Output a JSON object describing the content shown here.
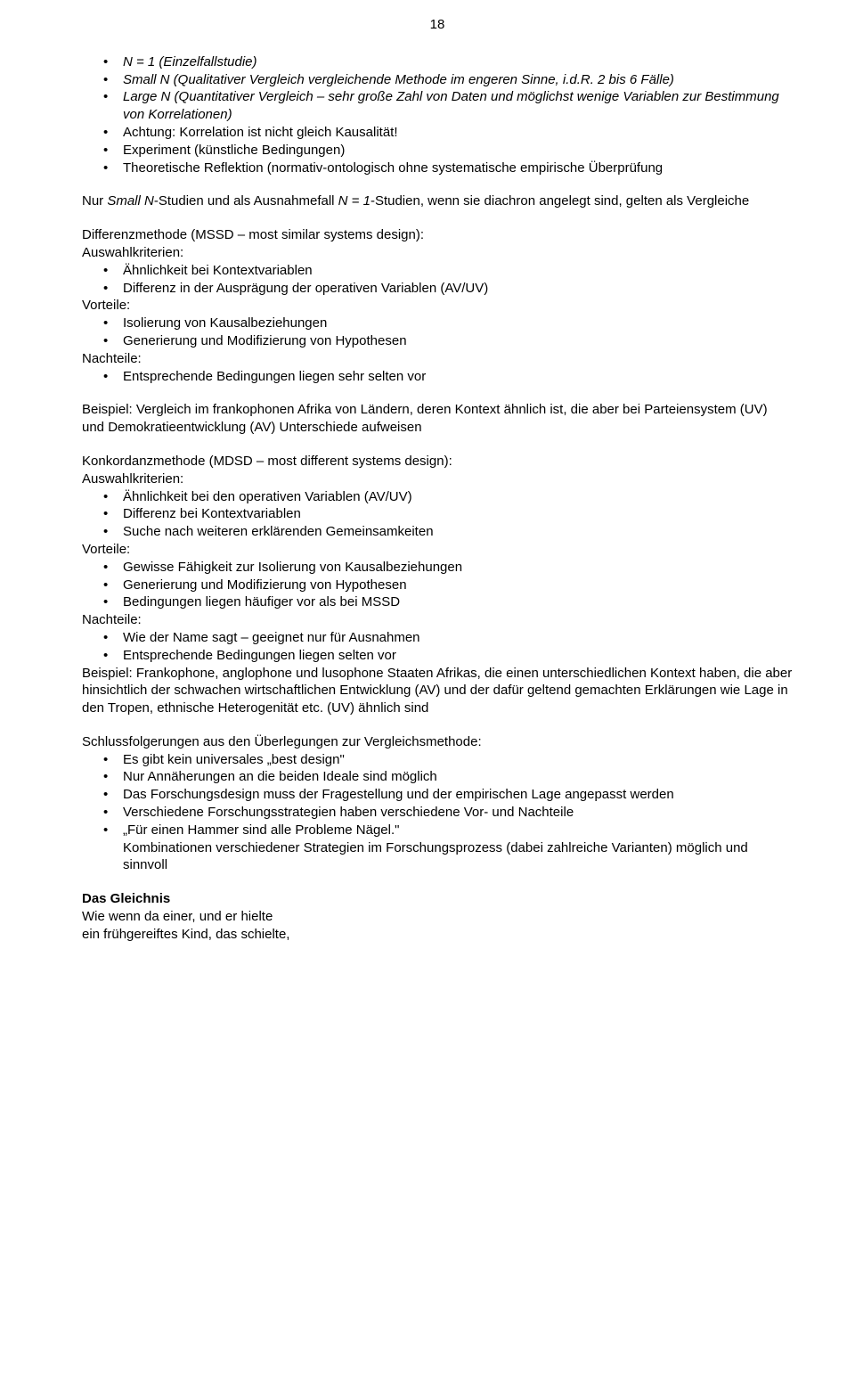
{
  "page_number": "18",
  "top_list": [
    "N = 1 (Einzelfallstudie)",
    "Small N (Qualitativer Vergleich  vergleichende Methode im engeren Sinne, i.d.R. 2 bis 6 Fälle)",
    "Large N (Quantitativer Vergleich – sehr große Zahl von Daten und möglichst wenige Variablen zur Bestimmung von Korrelationen)",
    "Achtung: Korrelation ist nicht gleich Kausalität!",
    "Experiment (künstliche Bedingungen)",
    "Theoretische Reflektion (normativ-ontologisch ohne systematische empirische Überprüfung"
  ],
  "para1_a": "Nur ",
  "para1_b": "Small N",
  "para1_c": "-Studien und als Ausnahmefall ",
  "para1_d": "N = 1",
  "para1_e": "-Studien, wenn sie diachron angelegt sind, gelten als Vergleiche",
  "diff_head": "Differenzmethode (MSSD – most similar systems design):",
  "ausw_label": "Auswahlkriterien:",
  "diff_ausw": [
    "Ähnlichkeit bei Kontextvariablen",
    "Differenz in der Ausprägung der operativen Variablen (AV/UV)"
  ],
  "vort_label": "Vorteile:",
  "diff_vort": [
    "Isolierung von Kausalbeziehungen",
    "Generierung und Modifizierung von Hypothesen"
  ],
  "nacht_label": "Nachteile:",
  "diff_nacht": [
    "Entsprechende Bedingungen liegen sehr selten vor"
  ],
  "diff_beispiel": "Beispiel: Vergleich im frankophonen Afrika von Ländern, deren Kontext ähnlich ist, die aber bei Parteiensystem (UV) und Demokratieentwicklung (AV) Unterschiede aufweisen",
  "konk_head": "Konkordanzmethode (MDSD – most different systems design):",
  "konk_ausw": [
    "Ähnlichkeit bei den operativen Variablen (AV/UV)",
    "Differenz bei Kontextvariablen",
    "Suche nach weiteren erklärenden Gemeinsamkeiten"
  ],
  "konk_vort": [
    "Gewisse Fähigkeit zur Isolierung von Kausalbeziehungen",
    "Generierung und Modifizierung von Hypothesen",
    "Bedingungen liegen häufiger vor als bei MSSD"
  ],
  "konk_nacht": [
    "Wie der Name sagt – geeignet nur für Ausnahmen",
    "Entsprechende Bedingungen liegen selten vor"
  ],
  "konk_beispiel": "Beispiel: Frankophone, anglophone und lusophone Staaten Afrikas, die einen unterschiedlichen Kontext haben, die aber hinsichtlich der schwachen wirtschaftlichen Entwicklung (AV) und der dafür geltend gemachten Erklärungen wie Lage in den Tropen, ethnische Heterogenität etc. (UV) ähnlich sind",
  "schluss_head": "Schlussfolgerungen aus den Überlegungen zur Vergleichsmethode:",
  "schluss_list": [
    "Es gibt kein universales „best design\"",
    "Nur Annäherungen an die beiden Ideale sind möglich",
    "Das Forschungsdesign muss der Fragestellung und der empirischen Lage angepasst werden",
    "Verschiedene Forschungsstrategien haben verschiedene Vor- und Nachteile",
    "„Für einen Hammer sind alle Probleme Nägel.\""
  ],
  "schluss_tail": "Kombinationen verschiedener Strategien im Forschungsprozess (dabei zahlreiche Varianten) möglich und sinnvoll",
  "gleichnis_head": "Das Gleichnis",
  "gleichnis_l1": "Wie wenn da einer, und er hielte",
  "gleichnis_l2": "ein frühgereiftes Kind, das schielte,"
}
